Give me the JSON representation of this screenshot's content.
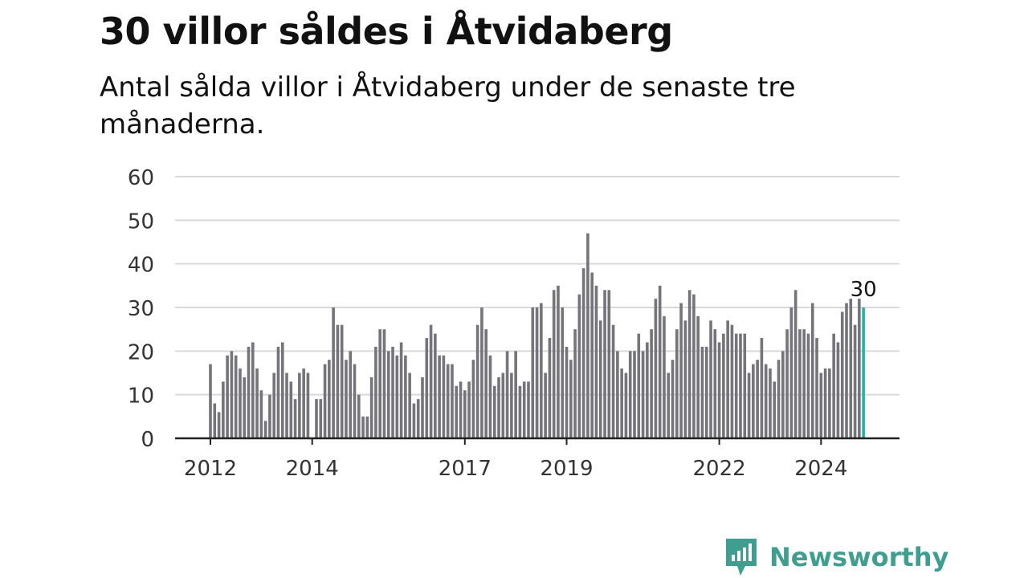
{
  "title": "30 villor såldes i Åtvidaberg",
  "subtitle": "Antal sålda villor i Åtvidaberg under de senaste tre månaderna.",
  "brand": {
    "name": "Newsworthy",
    "color": "#3f9e8f"
  },
  "colors": {
    "bar": "#74747a",
    "highlight": "#1fb5a6",
    "grid": "#d9d9d9",
    "axis": "#222222"
  },
  "chart_data": {
    "type": "bar",
    "x_unit": "month",
    "x_start": "2012-01",
    "x_end": "2024-10",
    "values": [
      17,
      8,
      6,
      13,
      19,
      20,
      19,
      16,
      14,
      21,
      22,
      16,
      11,
      4,
      10,
      15,
      21,
      22,
      15,
      13,
      9,
      15,
      16,
      15,
      0,
      9,
      9,
      17,
      18,
      30,
      26,
      26,
      18,
      20,
      17,
      10,
      5,
      5,
      14,
      21,
      25,
      25,
      20,
      21,
      19,
      22,
      19,
      15,
      8,
      9,
      14,
      23,
      26,
      24,
      19,
      19,
      17,
      17,
      12,
      13,
      11,
      13,
      18,
      26,
      30,
      25,
      19,
      12,
      14,
      15,
      20,
      15,
      20,
      12,
      13,
      13,
      30,
      30,
      31,
      15,
      23,
      34,
      35,
      30,
      21,
      18,
      25,
      33,
      39,
      47,
      38,
      35,
      27,
      34,
      34,
      26,
      20,
      16,
      15,
      20,
      20,
      24,
      20,
      22,
      25,
      32,
      35,
      28,
      15,
      18,
      25,
      31,
      27,
      34,
      33,
      28,
      21,
      21,
      27,
      25,
      22,
      24,
      27,
      26,
      24,
      24,
      24,
      15,
      17,
      18,
      23,
      17,
      16,
      13,
      18,
      20,
      25,
      30,
      34,
      25,
      25,
      24,
      31,
      23,
      15,
      16,
      16,
      24,
      22,
      29,
      31,
      32,
      26,
      32,
      30
    ],
    "highlight_last": true,
    "data_label": "30",
    "x_ticks": [
      "2012",
      "2014",
      "2017",
      "2019",
      "2022",
      "2024"
    ],
    "y_ticks": [
      "0",
      "10",
      "20",
      "30",
      "40",
      "50",
      "60"
    ],
    "ylim": [
      0,
      60
    ],
    "grid": true,
    "legend": "none",
    "xlabel": "",
    "ylabel": ""
  }
}
